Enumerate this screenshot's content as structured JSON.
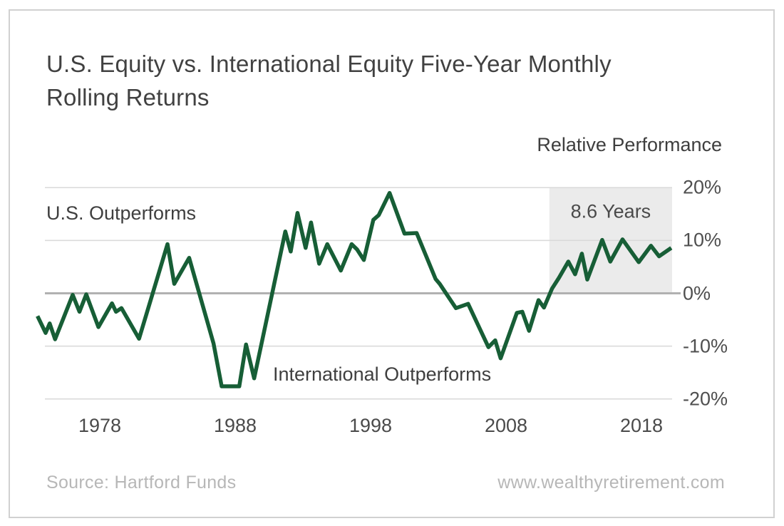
{
  "title": {
    "line1": "U.S. Equity vs. International Equity Five-Year Monthly",
    "line2": "Rolling Returns"
  },
  "axis_title": "Relative Performance",
  "labels": {
    "us_outperforms": "U.S. Outperforms",
    "intl_outperforms": "International Outperforms"
  },
  "highlight": {
    "label": "8.6 Years",
    "start_year": 2011.2,
    "end_year": 2020.3,
    "from_pct": 0,
    "to_pct": 20
  },
  "footer": {
    "source": "Source: Hartford Funds",
    "website": "www.wealthyretirement.com"
  },
  "colors": {
    "line_green": "#175e36",
    "grid": "#d9d9d9",
    "zero_line": "#b1b1b1",
    "highlight_fill": "#ebebeb",
    "text_dark": "#414141",
    "text_axis": "#4f4f4f",
    "text_footer": "#b7b7b7",
    "card_border": "#d1d1d1"
  },
  "chart_data": {
    "type": "line",
    "title": "U.S. Equity vs. International Equity Five-Year Monthly Rolling Returns",
    "xlabel": "",
    "ylabel": "Relative Performance",
    "x_range": [
      1973.3,
      2020.3
    ],
    "y_range": [
      -20,
      20
    ],
    "grid": true,
    "legend_position": "none",
    "x_ticks": [
      1978,
      1988,
      1998,
      2008,
      2018
    ],
    "y_ticks": [
      {
        "value": 20,
        "label": "20%"
      },
      {
        "value": 10,
        "label": "10%"
      },
      {
        "value": 0,
        "label": "0%"
      },
      {
        "value": -10,
        "label": "-10%"
      },
      {
        "value": -20,
        "label": "-20%"
      }
    ],
    "annotations": [
      {
        "text": "U.S. Outperforms",
        "region": "above zero line, left"
      },
      {
        "text": "International Outperforms",
        "region": "below zero line, center"
      },
      {
        "text": "8.6 Years",
        "region": "shaded box 2011.2-2020.3 between 0% and 20%"
      }
    ],
    "series": [
      {
        "name": "U.S. vs. International five-year monthly rolling relative return",
        "color": "#175e36",
        "points": [
          [
            1973.4,
            -4.3
          ],
          [
            1974.0,
            -7.5
          ],
          [
            1974.3,
            -5.7
          ],
          [
            1974.7,
            -8.7
          ],
          [
            1976.0,
            -0.3
          ],
          [
            1976.5,
            -3.5
          ],
          [
            1977.0,
            -0.2
          ],
          [
            1977.9,
            -6.4
          ],
          [
            1978.9,
            -1.9
          ],
          [
            1979.2,
            -3.5
          ],
          [
            1979.6,
            -2.8
          ],
          [
            1980.9,
            -8.6
          ],
          [
            1983.0,
            9.3
          ],
          [
            1983.5,
            1.8
          ],
          [
            1984.6,
            6.7
          ],
          [
            1986.4,
            -9.5
          ],
          [
            1987.0,
            -17.6
          ],
          [
            1988.3,
            -17.6
          ],
          [
            1988.8,
            -9.7
          ],
          [
            1989.4,
            -16.1
          ],
          [
            1991.7,
            11.7
          ],
          [
            1992.1,
            7.9
          ],
          [
            1992.6,
            15.2
          ],
          [
            1993.2,
            8.6
          ],
          [
            1993.6,
            13.4
          ],
          [
            1994.2,
            5.6
          ],
          [
            1994.8,
            9.3
          ],
          [
            1995.8,
            4.3
          ],
          [
            1996.6,
            9.3
          ],
          [
            1997.0,
            8.3
          ],
          [
            1997.5,
            6.3
          ],
          [
            1998.2,
            13.9
          ],
          [
            1998.6,
            14.8
          ],
          [
            1999.4,
            19.0
          ],
          [
            2000.5,
            11.3
          ],
          [
            2001.4,
            11.4
          ],
          [
            2002.8,
            2.7
          ],
          [
            2003.1,
            1.8
          ],
          [
            2004.3,
            -2.8
          ],
          [
            2005.2,
            -2.0
          ],
          [
            2006.7,
            -10.2
          ],
          [
            2007.2,
            -8.9
          ],
          [
            2007.6,
            -12.3
          ],
          [
            2008.8,
            -3.7
          ],
          [
            2009.2,
            -3.5
          ],
          [
            2009.7,
            -7.1
          ],
          [
            2010.4,
            -1.3
          ],
          [
            2010.8,
            -2.7
          ],
          [
            2011.4,
            0.9
          ],
          [
            2011.9,
            2.9
          ],
          [
            2012.6,
            6.0
          ],
          [
            2013.1,
            3.6
          ],
          [
            2013.6,
            7.5
          ],
          [
            2014.0,
            2.6
          ],
          [
            2015.1,
            10.1
          ],
          [
            2015.7,
            6.0
          ],
          [
            2016.6,
            10.2
          ],
          [
            2017.8,
            5.9
          ],
          [
            2018.7,
            9.0
          ],
          [
            2019.3,
            7.0
          ],
          [
            2020.2,
            8.6
          ]
        ]
      }
    ]
  }
}
